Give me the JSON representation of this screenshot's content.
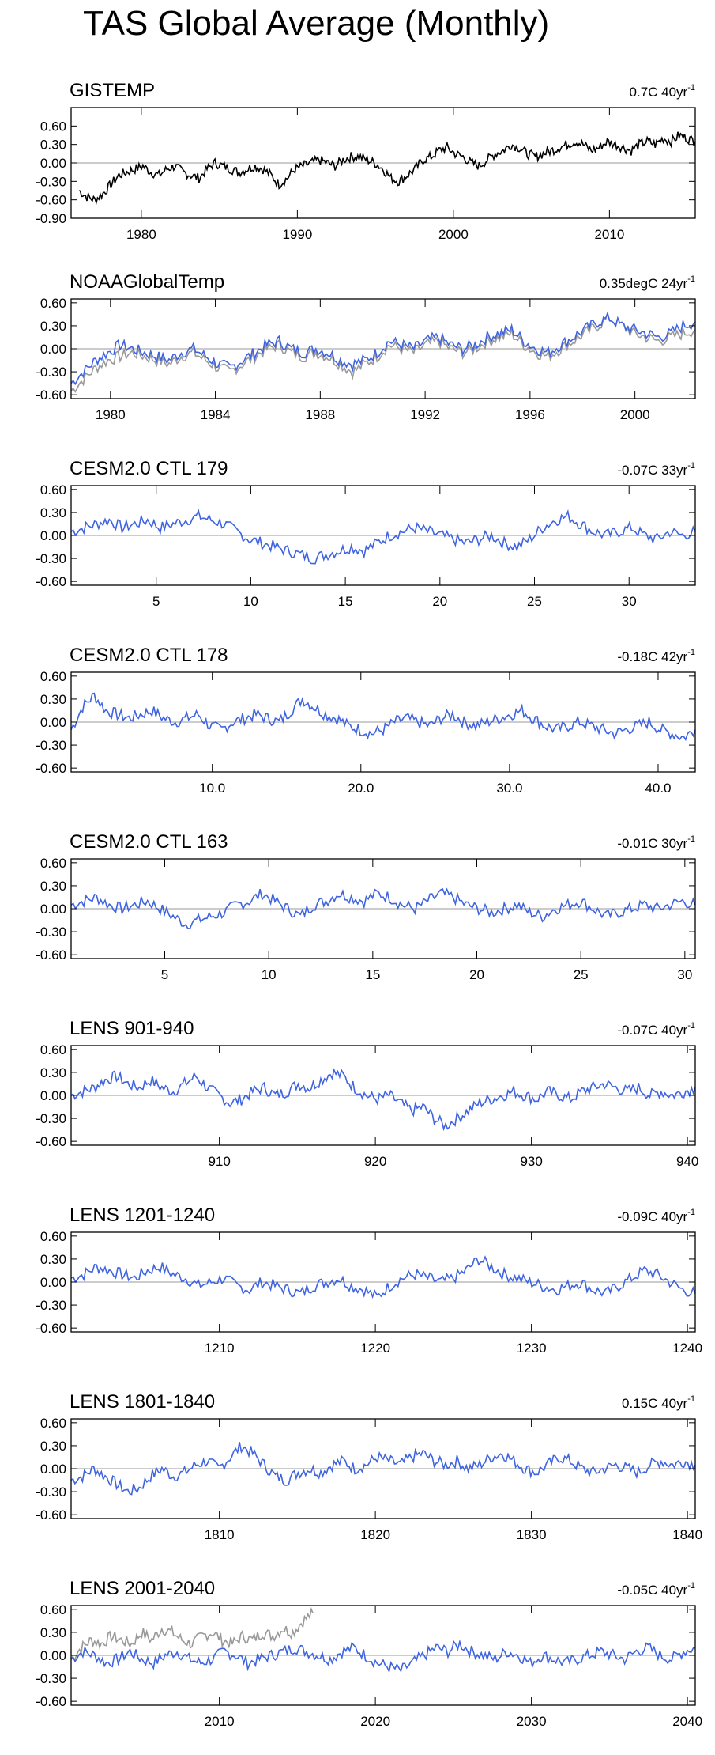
{
  "figure": {
    "title": "TAS Global Average (Monthly)"
  },
  "colors": {
    "observed": "#000000",
    "model": "#3f64e0",
    "overlay": "#999999",
    "zero_line": "#999999",
    "axis": "#000000"
  },
  "chart_data": [
    {
      "type": "line",
      "title": "GISTEMP",
      "trend": {
        "value": "0.7C 40yr",
        "superscript": "-1"
      },
      "xlim": [
        1975.5,
        2015.5
      ],
      "ylim": [
        -0.9,
        0.9
      ],
      "yticks": [
        "0.60",
        "0.30",
        "0.00",
        "-0.30",
        "-0.60",
        "-0.90"
      ],
      "ytick_values": [
        0.6,
        0.3,
        0.0,
        -0.3,
        -0.6,
        -0.9
      ],
      "xticks": [
        "1980",
        "1990",
        "2000",
        "2010"
      ],
      "xtick_values": [
        1980,
        1990,
        2000,
        2010
      ],
      "series": [
        {
          "name": "GISTEMP",
          "color": "observed",
          "x_start": 1976,
          "x_end": 2015.5,
          "values": [
            -0.45,
            -0.55,
            -0.6,
            -0.5,
            -0.35,
            -0.2,
            -0.15,
            -0.1,
            -0.05,
            -0.15,
            -0.2,
            -0.1,
            -0.05,
            -0.15,
            -0.2,
            -0.25,
            -0.1,
            0.0,
            -0.05,
            -0.1,
            -0.15,
            -0.1,
            -0.05,
            -0.1,
            -0.2,
            -0.35,
            -0.25,
            -0.1,
            -0.05,
            0.0,
            0.05,
            0.0,
            -0.05,
            0.05,
            0.1,
            0.1,
            0.05,
            0.0,
            -0.1,
            -0.25,
            -0.3,
            -0.2,
            -0.1,
            0.05,
            0.1,
            0.2,
            0.25,
            0.15,
            0.1,
            0.0,
            -0.05,
            0.05,
            0.15,
            0.2,
            0.3,
            0.25,
            0.15,
            0.1,
            0.15,
            0.2,
            0.25,
            0.3,
            0.35,
            0.3,
            0.2,
            0.25,
            0.35,
            0.3,
            0.25,
            0.2,
            0.3,
            0.35,
            0.3,
            0.4,
            0.35,
            0.45,
            0.4,
            0.35
          ]
        }
      ]
    },
    {
      "type": "line",
      "title": "NOAAGlobalTemp",
      "trend": {
        "value": "0.35degC 24yr",
        "superscript": "-1"
      },
      "xlim": [
        1978.5,
        2002.3
      ],
      "ylim": [
        -0.65,
        0.65
      ],
      "yticks": [
        "0.60",
        "0.30",
        "0.00",
        "-0.30",
        "-0.60"
      ],
      "ytick_values": [
        0.6,
        0.3,
        0.0,
        -0.3,
        -0.6
      ],
      "xticks": [
        "1980",
        "1984",
        "1988",
        "1992",
        "1996",
        "2000"
      ],
      "xtick_values": [
        1980,
        1984,
        1988,
        1992,
        1996,
        2000
      ],
      "series": [
        {
          "name": "NOAAGlobalTemp (observed)",
          "color": "overlay",
          "x_start": 1978.5,
          "x_end": 2002.3,
          "values": [
            -0.55,
            -0.4,
            -0.25,
            -0.15,
            -0.1,
            -0.05,
            -0.1,
            -0.15,
            -0.2,
            -0.1,
            -0.05,
            -0.15,
            -0.25,
            -0.3,
            -0.2,
            -0.1,
            0.0,
            0.05,
            -0.05,
            -0.1,
            -0.05,
            -0.1,
            -0.2,
            -0.3,
            -0.2,
            -0.1,
            0.05,
            0.0,
            -0.05,
            0.05,
            0.1,
            0.0,
            -0.05,
            0.0,
            0.1,
            0.15,
            0.2,
            0.05,
            -0.05,
            -0.1,
            0.0,
            0.1,
            0.2,
            0.3,
            0.4,
            0.3,
            0.2,
            0.15,
            0.1,
            0.15,
            0.2,
            0.25
          ]
        },
        {
          "name": "NOAAGlobalTemp (model)",
          "color": "model",
          "x_start": 1978.5,
          "x_end": 2002.3,
          "values": [
            -0.45,
            -0.3,
            -0.15,
            -0.05,
            0.05,
            0.0,
            -0.05,
            -0.1,
            -0.15,
            -0.05,
            0.0,
            -0.1,
            -0.2,
            -0.25,
            -0.15,
            -0.05,
            0.05,
            0.1,
            0.0,
            -0.05,
            0.0,
            -0.05,
            -0.15,
            -0.2,
            -0.15,
            -0.05,
            0.1,
            0.05,
            0.0,
            0.1,
            0.15,
            0.05,
            0.0,
            0.05,
            0.15,
            0.2,
            0.25,
            0.1,
            0.0,
            -0.05,
            0.05,
            0.15,
            0.25,
            0.35,
            0.4,
            0.3,
            0.25,
            0.2,
            0.15,
            0.2,
            0.3,
            0.35
          ]
        }
      ]
    },
    {
      "type": "line",
      "title": "CESM2.0 CTL 179",
      "trend": {
        "value": "-0.07C 33yr",
        "superscript": "-1"
      },
      "xlim": [
        0.5,
        33.5
      ],
      "ylim": [
        -0.65,
        0.65
      ],
      "yticks": [
        "0.60",
        "0.30",
        "0.00",
        "-0.30",
        "-0.60"
      ],
      "ytick_values": [
        0.6,
        0.3,
        0.0,
        -0.3,
        -0.6
      ],
      "xticks": [
        "5",
        "10",
        "15",
        "20",
        "25",
        "30"
      ],
      "xtick_values": [
        5,
        10,
        15,
        20,
        25,
        30
      ],
      "series": [
        {
          "name": "CTL 179",
          "color": "model",
          "x_start": 0.5,
          "x_end": 33.5,
          "values": [
            0.05,
            0.1,
            0.15,
            0.2,
            0.1,
            0.15,
            0.2,
            0.1,
            0.15,
            0.2,
            0.25,
            0.2,
            0.15,
            0.05,
            -0.05,
            -0.1,
            -0.15,
            -0.2,
            -0.25,
            -0.3,
            -0.25,
            -0.2,
            -0.15,
            -0.2,
            -0.1,
            0.0,
            0.05,
            0.1,
            0.05,
            0.0,
            -0.05,
            -0.1,
            -0.05,
            0.0,
            -0.1,
            -0.15,
            -0.05,
            0.1,
            0.2,
            0.25,
            0.15,
            0.05,
            0.0,
            0.05,
            0.1,
            0.0,
            -0.05,
            0.05,
            0.0,
            0.05
          ]
        }
      ]
    },
    {
      "type": "line",
      "title": "CESM2.0 CTL 178",
      "trend": {
        "value": "-0.18C 42yr",
        "superscript": "-1"
      },
      "xlim": [
        0.5,
        42.5
      ],
      "ylim": [
        -0.65,
        0.65
      ],
      "yticks": [
        "0.60",
        "0.30",
        "0.00",
        "-0.30",
        "-0.60"
      ],
      "ytick_values": [
        0.6,
        0.3,
        0.0,
        -0.3,
        -0.6
      ],
      "xticks": [
        "10.0",
        "20.0",
        "30.0",
        "40.0"
      ],
      "xtick_values": [
        10,
        20,
        30,
        40
      ],
      "series": [
        {
          "name": "CTL 178",
          "color": "model",
          "x_start": 0.5,
          "x_end": 42.5,
          "values": [
            -0.1,
            0.2,
            0.35,
            0.15,
            0.1,
            0.05,
            0.1,
            0.15,
            0.05,
            0.0,
            0.05,
            0.1,
            -0.05,
            -0.1,
            0.0,
            0.05,
            0.1,
            0.05,
            0.0,
            0.15,
            0.3,
            0.2,
            0.1,
            0.05,
            -0.05,
            -0.1,
            -0.15,
            -0.1,
            0.0,
            0.05,
            0.0,
            -0.05,
            0.05,
            0.1,
            0.0,
            -0.05,
            0.0,
            0.05,
            0.1,
            0.15,
            0.05,
            -0.05,
            -0.1,
            -0.05,
            0.0,
            -0.05,
            -0.1,
            -0.15,
            -0.1,
            -0.05,
            0.0,
            -0.1,
            -0.15,
            -0.2,
            -0.1
          ]
        }
      ]
    },
    {
      "type": "line",
      "title": "CESM2.0 CTL 163",
      "trend": {
        "value": "-0.01C 30yr",
        "superscript": "-1"
      },
      "xlim": [
        0.5,
        30.5
      ],
      "ylim": [
        -0.65,
        0.65
      ],
      "yticks": [
        "0.60",
        "0.30",
        "0.00",
        "-0.30",
        "-0.60"
      ],
      "ytick_values": [
        0.6,
        0.3,
        0.0,
        -0.3,
        -0.6
      ],
      "xticks": [
        "5",
        "10",
        "15",
        "20",
        "25",
        "30"
      ],
      "xtick_values": [
        5,
        10,
        15,
        20,
        25,
        30
      ],
      "series": [
        {
          "name": "CTL 163",
          "color": "model",
          "x_start": 0.5,
          "x_end": 30.5,
          "values": [
            0.05,
            0.1,
            0.15,
            0.05,
            0.0,
            0.05,
            0.1,
            0.0,
            -0.1,
            -0.2,
            -0.15,
            -0.1,
            -0.05,
            0.05,
            0.1,
            0.2,
            0.1,
            0.0,
            -0.1,
            0.05,
            0.1,
            0.2,
            0.15,
            0.1,
            0.2,
            0.15,
            0.05,
            0.0,
            0.1,
            0.2,
            0.15,
            0.05,
            0.0,
            -0.05,
            0.0,
            0.05,
            -0.05,
            -0.1,
            0.0,
            0.05,
            0.1,
            0.0,
            -0.1,
            -0.05,
            0.0,
            0.05,
            0.0,
            0.05,
            0.1,
            0.05
          ]
        }
      ]
    },
    {
      "type": "line",
      "title": "LENS 901-940",
      "trend": {
        "value": "-0.07C 40yr",
        "superscript": "-1"
      },
      "xlim": [
        900.5,
        940.5
      ],
      "ylim": [
        -0.65,
        0.65
      ],
      "yticks": [
        "0.60",
        "0.30",
        "0.00",
        "-0.30",
        "-0.60"
      ],
      "ytick_values": [
        0.6,
        0.3,
        0.0,
        -0.3,
        -0.6
      ],
      "xticks": [
        "910",
        "920",
        "930",
        "940"
      ],
      "xtick_values": [
        910,
        920,
        930,
        940
      ],
      "series": [
        {
          "name": "LENS 901-940",
          "color": "model",
          "x_start": 900.5,
          "x_end": 940.5,
          "values": [
            0.0,
            0.05,
            0.1,
            0.2,
            0.25,
            0.15,
            0.1,
            0.2,
            0.1,
            0.05,
            0.15,
            0.25,
            0.1,
            0.0,
            -0.1,
            -0.05,
            0.05,
            0.1,
            0.0,
            0.05,
            0.15,
            0.1,
            0.2,
            0.3,
            0.25,
            0.1,
            0.0,
            -0.05,
            0.0,
            -0.1,
            -0.2,
            -0.15,
            -0.3,
            -0.4,
            -0.3,
            -0.2,
            -0.1,
            -0.05,
            0.0,
            0.05,
            0.0,
            -0.05,
            0.05,
            0.0,
            -0.05,
            0.05,
            0.1,
            0.15,
            0.1,
            0.05,
            0.1,
            0.0,
            0.05,
            0.0,
            0.05,
            0.1
          ]
        }
      ]
    },
    {
      "type": "line",
      "title": "LENS 1201-1240",
      "trend": {
        "value": "-0.09C 40yr",
        "superscript": "-1"
      },
      "xlim": [
        1200.5,
        1240.5
      ],
      "ylim": [
        -0.65,
        0.65
      ],
      "yticks": [
        "0.60",
        "0.30",
        "0.00",
        "-0.30",
        "-0.60"
      ],
      "ytick_values": [
        0.6,
        0.3,
        0.0,
        -0.3,
        -0.6
      ],
      "xticks": [
        "1210",
        "1220",
        "1230",
        "1240"
      ],
      "xtick_values": [
        1210,
        1220,
        1230,
        1240
      ],
      "series": [
        {
          "name": "LENS 1201-1240",
          "color": "model",
          "x_start": 1200.5,
          "x_end": 1240.5,
          "values": [
            0.05,
            0.1,
            0.2,
            0.15,
            0.1,
            0.05,
            0.15,
            0.2,
            0.1,
            0.05,
            -0.05,
            0.0,
            0.05,
            -0.05,
            -0.1,
            0.0,
            -0.05,
            -0.1,
            -0.15,
            -0.05,
            0.0,
            0.05,
            -0.05,
            -0.1,
            -0.2,
            -0.05,
            0.05,
            0.1,
            0.05,
            0.0,
            0.05,
            0.15,
            0.3,
            0.2,
            0.1,
            0.05,
            0.0,
            -0.05,
            -0.1,
            -0.05,
            0.0,
            -0.1,
            -0.15,
            -0.05,
            0.05,
            0.15,
            0.1,
            0.0,
            -0.1,
            -0.15
          ]
        }
      ]
    },
    {
      "type": "line",
      "title": "LENS 1801-1840",
      "trend": {
        "value": "0.15C 40yr",
        "superscript": "-1"
      },
      "xlim": [
        1800.5,
        1840.5
      ],
      "ylim": [
        -0.65,
        0.65
      ],
      "yticks": [
        "0.60",
        "0.30",
        "0.00",
        "-0.30",
        "-0.60"
      ],
      "ytick_values": [
        0.6,
        0.3,
        0.0,
        -0.3,
        -0.6
      ],
      "xticks": [
        "1810",
        "1820",
        "1830",
        "1840"
      ],
      "xtick_values": [
        1810,
        1820,
        1830,
        1840
      ],
      "series": [
        {
          "name": "LENS 1801-1840",
          "color": "model",
          "x_start": 1800.5,
          "x_end": 1840.5,
          "values": [
            -0.15,
            -0.1,
            0.0,
            -0.1,
            -0.2,
            -0.3,
            -0.25,
            -0.1,
            0.0,
            -0.1,
            -0.05,
            0.05,
            0.1,
            0.0,
            0.15,
            0.3,
            0.2,
            0.05,
            -0.1,
            -0.15,
            -0.05,
            0.0,
            -0.05,
            0.05,
            0.1,
            0.0,
            0.05,
            0.15,
            0.1,
            0.05,
            0.15,
            0.2,
            0.1,
            0.05,
            0.1,
            0.0,
            0.05,
            0.15,
            0.2,
            0.1,
            0.0,
            -0.05,
            0.05,
            0.15,
            0.1,
            0.0,
            -0.05,
            0.0,
            0.05,
            0.0,
            -0.05,
            0.05,
            0.1,
            0.05,
            0.1,
            0.05
          ]
        }
      ]
    },
    {
      "type": "line",
      "title": "LENS 2001-2040",
      "trend": {
        "value": "-0.05C 40yr",
        "superscript": "-1"
      },
      "xlim": [
        2000.5,
        2040.5
      ],
      "ylim": [
        -0.65,
        0.65
      ],
      "yticks": [
        "0.60",
        "0.30",
        "0.00",
        "-0.30",
        "-0.60"
      ],
      "ytick_values": [
        0.6,
        0.3,
        0.0,
        -0.3,
        -0.6
      ],
      "xticks": [
        "2010",
        "2020",
        "2030",
        "2040"
      ],
      "xtick_values": [
        2010,
        2020,
        2030,
        2040
      ],
      "series": [
        {
          "name": "Observed overlay",
          "color": "overlay",
          "x_start": 2000.5,
          "x_end": 2016,
          "values": [
            -0.05,
            0.1,
            0.2,
            0.15,
            0.25,
            0.2,
            0.15,
            0.3,
            0.2,
            0.35,
            0.3,
            0.2,
            0.15,
            0.25,
            0.3,
            0.2,
            0.15,
            0.25,
            0.2,
            0.3,
            0.25,
            0.35,
            0.3,
            0.45,
            0.55
          ]
        },
        {
          "name": "LENS 2001-2040",
          "color": "model",
          "x_start": 2000.5,
          "x_end": 2040.5,
          "values": [
            -0.05,
            0.05,
            0.0,
            -0.1,
            -0.05,
            0.05,
            -0.05,
            -0.1,
            0.0,
            0.05,
            -0.05,
            -0.1,
            -0.05,
            0.05,
            0.0,
            -0.1,
            -0.05,
            0.0,
            0.05,
            0.1,
            0.05,
            0.0,
            -0.05,
            0.05,
            0.1,
            0.0,
            -0.1,
            -0.15,
            -0.2,
            -0.1,
            0.0,
            0.1,
            0.05,
            0.15,
            0.05,
            0.0,
            -0.05,
            0.05,
            0.0,
            -0.1,
            0.0,
            -0.05,
            -0.1,
            -0.05,
            0.0,
            0.05,
            0.0,
            -0.05,
            0.05,
            0.1,
            0.0,
            -0.05,
            0.05,
            0.1
          ]
        }
      ]
    }
  ]
}
